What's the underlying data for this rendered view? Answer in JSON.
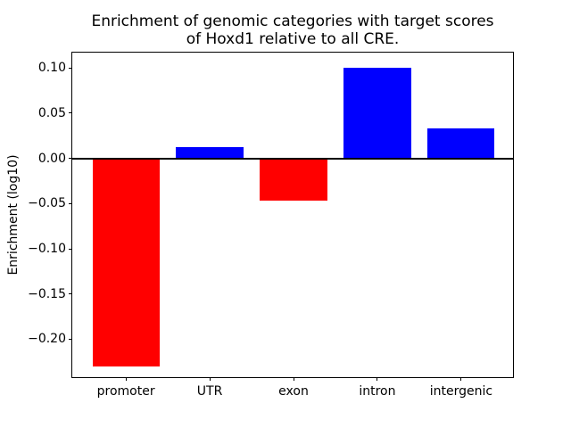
{
  "figure": {
    "background": "#ffffff",
    "frame_color": "#000000"
  },
  "chart_data": {
    "type": "bar",
    "title": "Enrichment of genomic categories with target scores\nof Hoxd1 relative to all CRE.",
    "title_lines": {
      "line1": "Enrichment of genomic categories with target scores",
      "line2": "of Hoxd1 relative to all CRE."
    },
    "xlabel": "",
    "ylabel": "Enrichment (log10)",
    "categories": [
      "promoter",
      "UTR",
      "exon",
      "intron",
      "intergenic"
    ],
    "values": [
      -0.23,
      0.012,
      -0.047,
      0.1,
      0.033
    ],
    "bar_colors": [
      "#ff0000",
      "#0000ff",
      "#ff0000",
      "#0000ff",
      "#0000ff"
    ],
    "positive_color": "#0000ff",
    "negative_color": "#ff0000",
    "yticks": [
      0.1,
      0.05,
      0.0,
      -0.05,
      -0.1,
      -0.15,
      -0.2
    ],
    "ytick_labels": [
      "0.10",
      "0.05",
      "0.00",
      "−0.05",
      "−0.10",
      "−0.15",
      "−0.20"
    ],
    "ylim": [
      -0.244,
      0.117
    ],
    "xlim": [
      -0.64,
      4.64
    ],
    "bar_width_units": 0.8,
    "zero_line": true,
    "grid": false,
    "legend_position": "none"
  }
}
